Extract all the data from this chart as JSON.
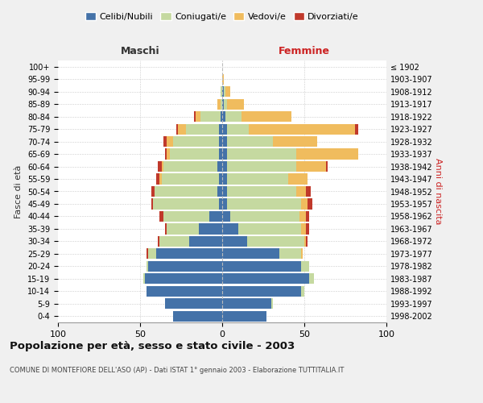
{
  "age_groups": [
    "0-4",
    "5-9",
    "10-14",
    "15-19",
    "20-24",
    "25-29",
    "30-34",
    "35-39",
    "40-44",
    "45-49",
    "50-54",
    "55-59",
    "60-64",
    "65-69",
    "70-74",
    "75-79",
    "80-84",
    "85-89",
    "90-94",
    "95-99",
    "100+"
  ],
  "birth_years": [
    "1998-2002",
    "1993-1997",
    "1988-1992",
    "1983-1987",
    "1978-1982",
    "1973-1977",
    "1968-1972",
    "1963-1967",
    "1958-1962",
    "1953-1957",
    "1948-1952",
    "1943-1947",
    "1938-1942",
    "1933-1937",
    "1928-1932",
    "1923-1927",
    "1918-1922",
    "1913-1917",
    "1908-1912",
    "1903-1907",
    "≤ 1902"
  ],
  "male": {
    "celibi": [
      30,
      35,
      46,
      47,
      45,
      40,
      20,
      14,
      8,
      2,
      3,
      2,
      3,
      2,
      2,
      2,
      1,
      0,
      0,
      0,
      0
    ],
    "coniugati": [
      0,
      0,
      0,
      1,
      1,
      5,
      18,
      20,
      28,
      40,
      38,
      35,
      33,
      30,
      28,
      20,
      12,
      1,
      1,
      0,
      0
    ],
    "vedovi": [
      0,
      0,
      0,
      0,
      0,
      0,
      0,
      0,
      0,
      0,
      0,
      1,
      1,
      2,
      4,
      5,
      3,
      2,
      0,
      0,
      0
    ],
    "divorziati": [
      0,
      0,
      0,
      0,
      0,
      1,
      1,
      1,
      2,
      1,
      2,
      2,
      2,
      1,
      2,
      1,
      1,
      0,
      0,
      0,
      0
    ]
  },
  "female": {
    "nubili": [
      27,
      30,
      48,
      53,
      48,
      35,
      15,
      10,
      5,
      3,
      3,
      3,
      3,
      3,
      3,
      3,
      2,
      1,
      1,
      0,
      0
    ],
    "coniugate": [
      0,
      1,
      2,
      3,
      5,
      13,
      35,
      38,
      42,
      45,
      42,
      37,
      42,
      42,
      28,
      13,
      10,
      2,
      1,
      0,
      0
    ],
    "vedove": [
      0,
      0,
      0,
      0,
      0,
      1,
      1,
      3,
      4,
      4,
      6,
      12,
      18,
      38,
      27,
      65,
      30,
      10,
      3,
      1,
      0
    ],
    "divorziate": [
      0,
      0,
      0,
      0,
      0,
      0,
      1,
      2,
      2,
      3,
      3,
      0,
      1,
      0,
      0,
      2,
      0,
      0,
      0,
      0,
      0
    ]
  },
  "colors": {
    "celibi": "#4472a8",
    "coniugati": "#c5d9a0",
    "vedovi": "#f0bc5e",
    "divorziati": "#c0392b"
  },
  "title": "Popolazione per età, sesso e stato civile - 2003",
  "subtitle": "COMUNE DI MONTEFIORE DELL'ASO (AP) - Dati ISTAT 1° gennaio 2003 - Elaborazione TUTTITALIA.IT",
  "xlabel_left": "Maschi",
  "xlabel_right": "Femmine",
  "ylabel_left": "Fasce di età",
  "ylabel_right": "Anni di nascita",
  "xlim": 100,
  "background_color": "#f0f0f0",
  "plot_bg": "#ffffff"
}
